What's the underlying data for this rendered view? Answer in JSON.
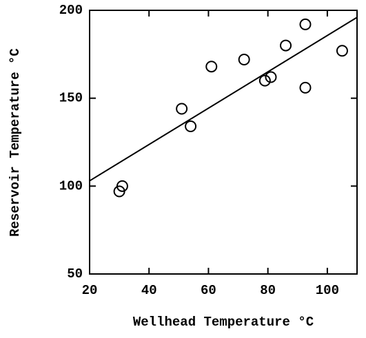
{
  "chart_data": {
    "type": "scatter",
    "xlabel": "Wellhead Temperature °C",
    "ylabel": "Reservoir Temperature °C",
    "x": [
      30,
      31,
      51,
      54,
      61,
      72,
      79,
      81,
      86,
      92.6,
      92.6,
      105
    ],
    "values": [
      97,
      100,
      144,
      134,
      168,
      172,
      160,
      162,
      180,
      156,
      192,
      177
    ],
    "fit_line": {
      "x": [
        20,
        110
      ],
      "y": [
        103,
        196
      ]
    },
    "color": "#000000",
    "xlim": [
      20,
      110
    ],
    "xticks": [
      20,
      40,
      60,
      80,
      100
    ],
    "ylim": [
      50,
      200
    ],
    "yticks": [
      50,
      100,
      150,
      200
    ]
  }
}
